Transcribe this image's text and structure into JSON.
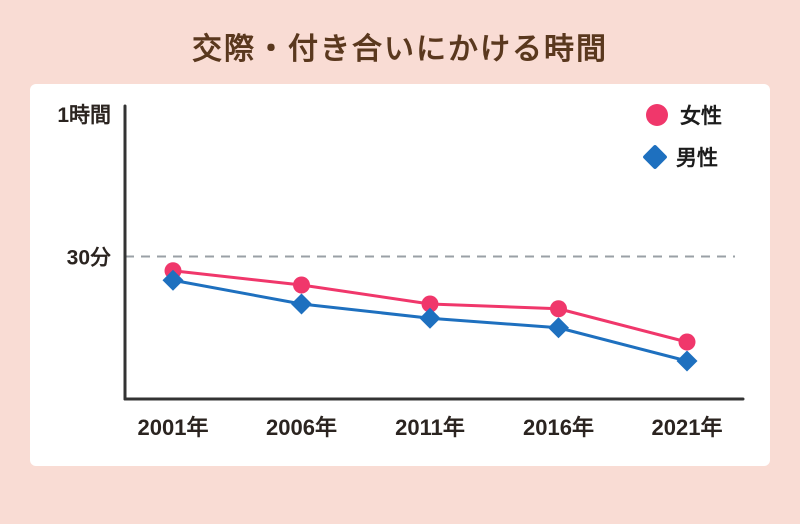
{
  "page": {
    "title": "交際・付き合いにかける時間"
  },
  "colors": {
    "background": "#f9dcd4",
    "title": "#5a381e",
    "axis": "#333333",
    "dashed": "#9aa0a6",
    "text": "#2b2420",
    "card": "#ffffff"
  },
  "chart_data": {
    "type": "line",
    "categories": [
      "2001年",
      "2006年",
      "2011年",
      "2016年",
      "2021年"
    ],
    "series": [
      {
        "name": "女性",
        "marker": "circle",
        "color": "#f0376b",
        "values": [
          27,
          24,
          20,
          19,
          12
        ]
      },
      {
        "name": "男性",
        "marker": "diamond",
        "color": "#1e70bf",
        "values": [
          25,
          20,
          17,
          15,
          8
        ]
      }
    ],
    "y_axis": {
      "top_label": "1時間",
      "mid_label": "30分",
      "ylim": [
        0,
        60
      ],
      "gridline_at": 30,
      "unit": "分"
    },
    "legend_position": "top-right",
    "grid": "single-dashed-midline",
    "title": "交際・付き合いにかける時間"
  }
}
